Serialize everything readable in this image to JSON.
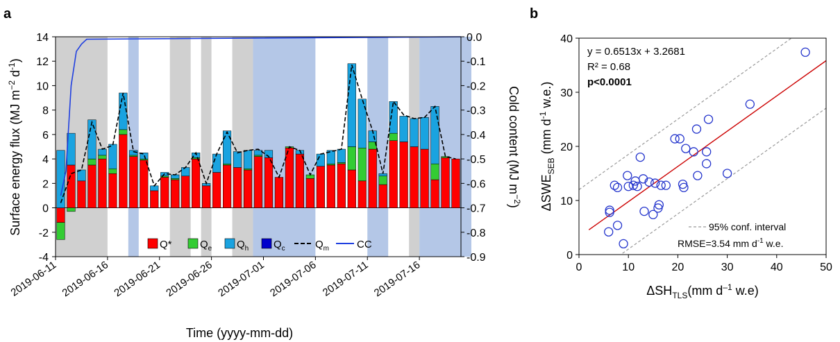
{
  "panel_a": {
    "label": "a",
    "xlabel": "Time (yyyy-mm-dd)",
    "ylabel_left": "Surface energy flux (MJ m",
    "ylabel_left_sup1": "−2",
    "ylabel_left_mid": " d",
    "ylabel_left_sup2": "-1",
    "ylabel_left_end": ")",
    "ylabel_right": "Cold content (MJ m",
    "ylabel_right_sup": "−2",
    "ylabel_right_end": ")",
    "legend": {
      "qstar": "Q*",
      "qe_base": "Q",
      "qe_sub": "e",
      "qh_base": "Q",
      "qh_sub": "h",
      "qc_base": "Q",
      "qc_sub": "c",
      "qm_base": "Q",
      "qm_sub": "m",
      "cc": "CC"
    },
    "colors": {
      "qstar": "#ff0000",
      "qe": "#33cc33",
      "qh": "#1aa3e0",
      "qc": "#0000cc",
      "qm": "#000000",
      "cc": "#1f3fe0",
      "gray": "#d0d0d0",
      "blue": "#b4c7e7"
    }
  },
  "panel_b": {
    "label": "b",
    "xlabel_base": "ΔSH",
    "xlabel_sub": "TLS",
    "xlabel_end": "(mm d",
    "xlabel_sup": "–1",
    "xlabel_tail": " w.e)",
    "ylabel_base": "ΔSWE",
    "ylabel_sub": "SEB",
    "ylabel_end": " (mm d",
    "ylabel_sup": "-1",
    "ylabel_tail": " w.e.)",
    "eq": "y = 0.6513x + 3.2681",
    "r2": "R² = 0.68",
    "p": "p<0.0001",
    "ci_label": "95% conf. interval",
    "rmse_base": "RMSE=3.54 mm d",
    "rmse_sup": "-1",
    "rmse_end": " w.e.",
    "colors": {
      "points": "#2233cc",
      "fit": "#cc0000",
      "ci": "#999999"
    }
  },
  "chart_data": [
    {
      "type": "bar",
      "stacked": true,
      "start_date": "2019-06-11",
      "tick_labels": [
        "2019-06-11",
        "2019-06-16",
        "2019-06-21",
        "2019-06-26",
        "2019-07-01",
        "2019-07-06",
        "2019-07-11",
        "2019-07-16"
      ],
      "ylim": [
        -4,
        14
      ],
      "yticks": [
        -4,
        -2,
        0,
        2,
        4,
        6,
        8,
        10,
        12,
        14
      ],
      "y2lim": [
        -0.9,
        0.0
      ],
      "y2ticks": [
        "0.0",
        "-0.1",
        "-0.2",
        "-0.3",
        "-0.4",
        "-0.5",
        "-0.6",
        "-0.7",
        "-0.8",
        "-0.9"
      ],
      "series": [
        {
          "name": "Q*",
          "values": [
            -1.2,
            3.5,
            2.2,
            3.5,
            4.0,
            2.8,
            6.0,
            4.2,
            3.9,
            1.4,
            2.5,
            2.3,
            2.6,
            4.0,
            1.8,
            2.9,
            3.5,
            3.3,
            3.1,
            4.2,
            4.1,
            2.5,
            4.9,
            4.4,
            2.4,
            3.4,
            3.5,
            3.6,
            3.1,
            2.2,
            4.8,
            1.9,
            5.5,
            5.4,
            5.0,
            4.8,
            2.3,
            4.1,
            4.0
          ]
        },
        {
          "name": "Qe",
          "values": [
            -1.4,
            -0.3,
            0,
            0.5,
            0.3,
            0.4,
            0.4,
            0.1,
            0.1,
            0,
            0.1,
            0.1,
            0,
            0.1,
            0,
            0,
            0.1,
            0,
            0.1,
            0.1,
            0,
            0,
            0.1,
            0,
            0.3,
            0,
            0.1,
            0.1,
            1.9,
            2.7,
            0.6,
            0.7,
            0.6,
            0,
            0,
            0,
            1.3,
            0.1,
            0
          ]
        },
        {
          "name": "Qh",
          "values": [
            4.7,
            2.6,
            0.9,
            3.2,
            0.5,
            2.0,
            3.0,
            0.4,
            0.5,
            0.4,
            0.3,
            0.3,
            0.7,
            0.4,
            0.2,
            1.5,
            2.7,
            1.3,
            1.5,
            0.4,
            0.6,
            0,
            0,
            0.3,
            0,
            1.0,
            1.1,
            1.1,
            6.8,
            4.0,
            0.9,
            0.2,
            2.6,
            2.1,
            2.3,
            2.6,
            4.7,
            0,
            0
          ]
        },
        {
          "name": "Qc",
          "values": [
            0,
            0,
            0,
            0,
            0,
            0,
            0,
            0,
            0,
            0,
            0,
            0,
            0,
            0,
            0,
            0,
            0,
            0,
            0,
            0,
            0,
            0,
            0,
            0,
            0,
            0,
            0,
            0,
            0,
            0,
            0,
            0,
            0,
            0,
            0,
            0,
            0,
            0,
            0
          ]
        },
        {
          "name": "Qm",
          "values": [
            0.4,
            2.8,
            3.1,
            7.0,
            4.8,
            5.1,
            9.4,
            4.6,
            4.4,
            1.8,
            2.8,
            2.7,
            3.3,
            4.5,
            2.0,
            4.4,
            6.2,
            4.5,
            4.7,
            4.8,
            4.2,
            2.5,
            5.0,
            4.7,
            2.7,
            4.4,
            4.6,
            4.8,
            11.7,
            8.9,
            6.3,
            2.8,
            8.7,
            7.6,
            7.3,
            7.4,
            8.3,
            4.2,
            4.0
          ]
        },
        {
          "name": "CC",
          "values": [
            -0.65,
            -0.2,
            -0.03,
            -0.01,
            0,
            0,
            0,
            0,
            0,
            0,
            0,
            0,
            0,
            0,
            0,
            0,
            0,
            0,
            0,
            0,
            0,
            0,
            0,
            0,
            0,
            0,
            0,
            0,
            0,
            0,
            0,
            0,
            0,
            0,
            0,
            0,
            0,
            0,
            0
          ]
        }
      ],
      "shading": {
        "gray": [
          [
            0,
            5
          ],
          [
            11,
            13
          ],
          [
            14,
            15
          ],
          [
            17,
            19
          ],
          [
            34,
            35
          ],
          [
            37,
            40
          ]
        ],
        "blue": [
          [
            7,
            8
          ],
          [
            19,
            25
          ],
          [
            30,
            32
          ],
          [
            35,
            40
          ]
        ]
      }
    },
    {
      "type": "scatter",
      "xlim": [
        0,
        50
      ],
      "ylim": [
        0,
        40
      ],
      "xticks": [
        0,
        10,
        20,
        30,
        40,
        50
      ],
      "yticks": [
        0,
        10,
        20,
        30,
        40
      ],
      "points": [
        [
          6,
          4.2
        ],
        [
          6.2,
          7.8
        ],
        [
          6.2,
          8.2
        ],
        [
          7.2,
          12.8
        ],
        [
          7.8,
          5.4
        ],
        [
          7.8,
          12.4
        ],
        [
          9,
          2
        ],
        [
          9.8,
          14.6
        ],
        [
          10,
          12.6
        ],
        [
          11,
          12.8
        ],
        [
          11.4,
          13.6
        ],
        [
          11.8,
          12.6
        ],
        [
          12.4,
          18
        ],
        [
          13,
          14
        ],
        [
          13.2,
          8
        ],
        [
          14.2,
          13.4
        ],
        [
          15,
          7.4
        ],
        [
          15.4,
          13.2
        ],
        [
          16,
          8.6
        ],
        [
          16.2,
          9.2
        ],
        [
          16.6,
          12.8
        ],
        [
          17.6,
          12.8
        ],
        [
          19.4,
          21.4
        ],
        [
          20.4,
          21.4
        ],
        [
          21,
          13
        ],
        [
          21.2,
          12.4
        ],
        [
          21.6,
          19.6
        ],
        [
          23.2,
          19
        ],
        [
          23.8,
          23.2
        ],
        [
          24,
          14.6
        ],
        [
          25.8,
          16.8
        ],
        [
          25.8,
          19
        ],
        [
          26.2,
          25
        ],
        [
          30,
          15
        ],
        [
          34.6,
          27.8
        ],
        [
          45.8,
          37.4
        ]
      ],
      "fit": {
        "slope": 0.6513,
        "intercept": 3.2681
      },
      "ci": {
        "upper_intercept": 12,
        "lower_intercept": -5.5
      }
    }
  ]
}
